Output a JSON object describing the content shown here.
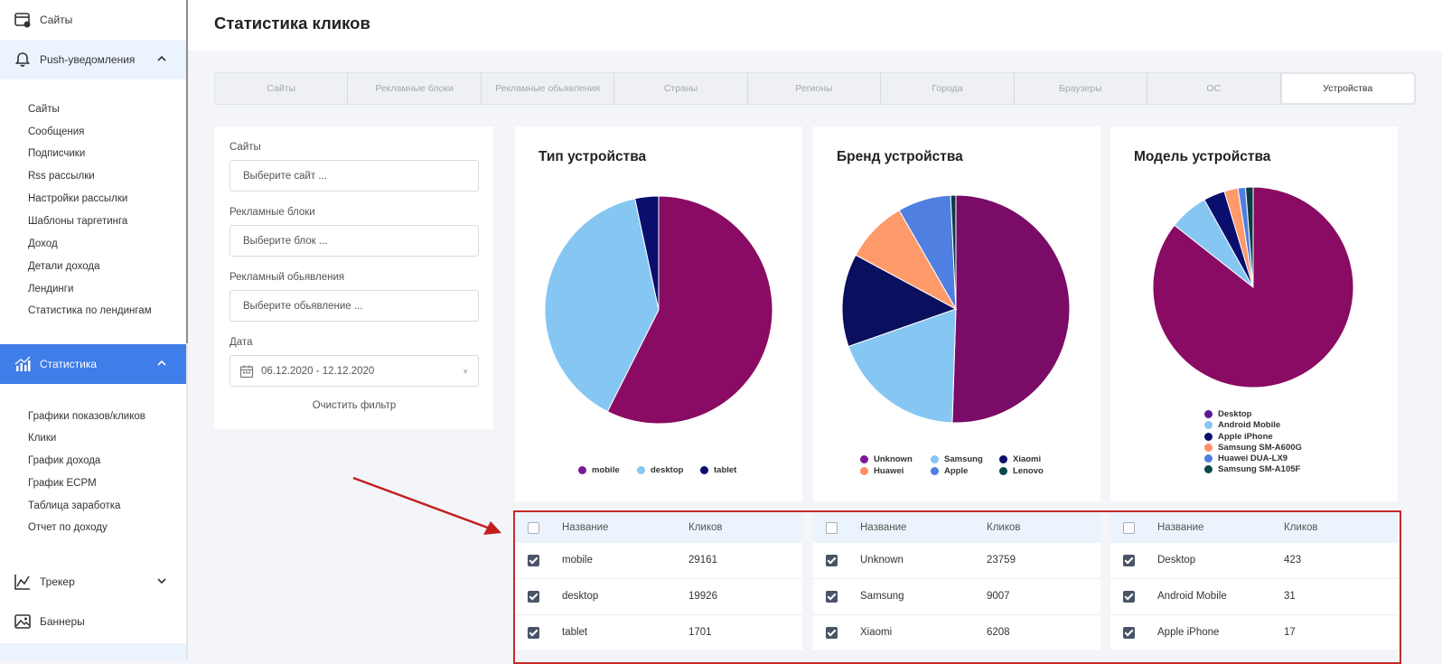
{
  "sidebar": {
    "sites_top": "Сайты",
    "push": "Push-уведомления",
    "push_items": [
      "Сайты",
      "Сообщения",
      "Подписчики",
      "Rss рассылки",
      "Настройки рассылки",
      "Шаблоны таргетинга",
      "Доход",
      "Детали дохода",
      "Лендинги",
      "Статистика по лендингам"
    ],
    "stats": "Статистика",
    "stats_items": [
      "Графики показов/кликов",
      "Клики",
      "График дохода",
      "График ECPM",
      "Таблица заработка",
      "Отчет по доходу"
    ],
    "tracker": "Трекер",
    "banners": "Баннеры"
  },
  "page": {
    "title": "Статистика кликов"
  },
  "tabs": [
    "Сайты",
    "Рекламные блоки",
    "Рекламные обьявления",
    "Страны",
    "Регионы",
    "Города",
    "Браузеры",
    "ОС",
    "Устройства"
  ],
  "active_tab": "Устройства",
  "filter": {
    "sites_label": "Сайты",
    "sites_placeholder": "Выберите сайт ...",
    "blocks_label": "Рекламные блоки",
    "blocks_placeholder": "Выберите блок ...",
    "ads_label": "Рекламный обьявления",
    "ads_placeholder": "Выберите обьявление ...",
    "date_label": "Дата",
    "date_value": "06.12.2020 - 12.12.2020",
    "clear": "Очистить фильтр"
  },
  "colors": {
    "accent": "#3f7de8",
    "sidebar_open": "#ebf4fc",
    "frame_red": "#c72a2a",
    "checkbox": "#4a5468"
  },
  "chart_data": [
    {
      "type": "pie",
      "title": "Тип устройства",
      "labels": [
        "mobile",
        "desktop",
        "tablet"
      ],
      "values": [
        29161,
        19926,
        1701
      ],
      "colors": [
        "#8a0b63",
        "#86c6f2",
        "#0a0f6e"
      ]
    },
    {
      "type": "pie",
      "title": "Бренд устройства",
      "labels": [
        "Unknown",
        "Samsung",
        "Xiaomi",
        "Huawei",
        "Apple",
        "Lenovo"
      ],
      "values": [
        23759,
        9007,
        6208,
        4150,
        3560,
        350
      ],
      "colors": [
        "#7a0b66",
        "#86c6f2",
        "#0a0f5e",
        "#ff9a6a",
        "#4f7fe0",
        "#0b3b44"
      ],
      "legend_colors": [
        "#7a1a96",
        "#86c6f2",
        "#0a0f6e",
        "#ff8f66",
        "#4f7fe0",
        "#0b4a4a"
      ]
    },
    {
      "type": "pie",
      "title": "Модель устройства",
      "labels": [
        "Desktop",
        "Android Mobile",
        "Apple iPhone",
        "Samsung SM-A600G",
        "Huawei DUA-LX9",
        "Samsung SM-A105F"
      ],
      "values": [
        423,
        31,
        17,
        11,
        6,
        6
      ],
      "colors": [
        "#8a0b63",
        "#86c6f2",
        "#0a0f6e",
        "#ff9a6a",
        "#4f7fe0",
        "#0b3b44"
      ],
      "legend_colors": [
        "#5a1a96",
        "#86c6f2",
        "#0a0f6e",
        "#ff8f66",
        "#4f7fe0",
        "#0b4a4a"
      ]
    }
  ],
  "tables": [
    {
      "header": {
        "name": "Название",
        "clicks": "Кликов"
      },
      "rows": [
        {
          "name": "mobile",
          "clicks": "29161"
        },
        {
          "name": "desktop",
          "clicks": "19926"
        },
        {
          "name": "tablet",
          "clicks": "1701"
        }
      ]
    },
    {
      "header": {
        "name": "Название",
        "clicks": "Кликов"
      },
      "rows": [
        {
          "name": "Unknown",
          "clicks": "23759"
        },
        {
          "name": "Samsung",
          "clicks": "9007"
        },
        {
          "name": "Xiaomi",
          "clicks": "6208"
        }
      ]
    },
    {
      "header": {
        "name": "Название",
        "clicks": "Кликов"
      },
      "rows": [
        {
          "name": "Desktop",
          "clicks": "423"
        },
        {
          "name": "Android Mobile",
          "clicks": "31"
        },
        {
          "name": "Apple iPhone",
          "clicks": "17"
        }
      ]
    }
  ]
}
